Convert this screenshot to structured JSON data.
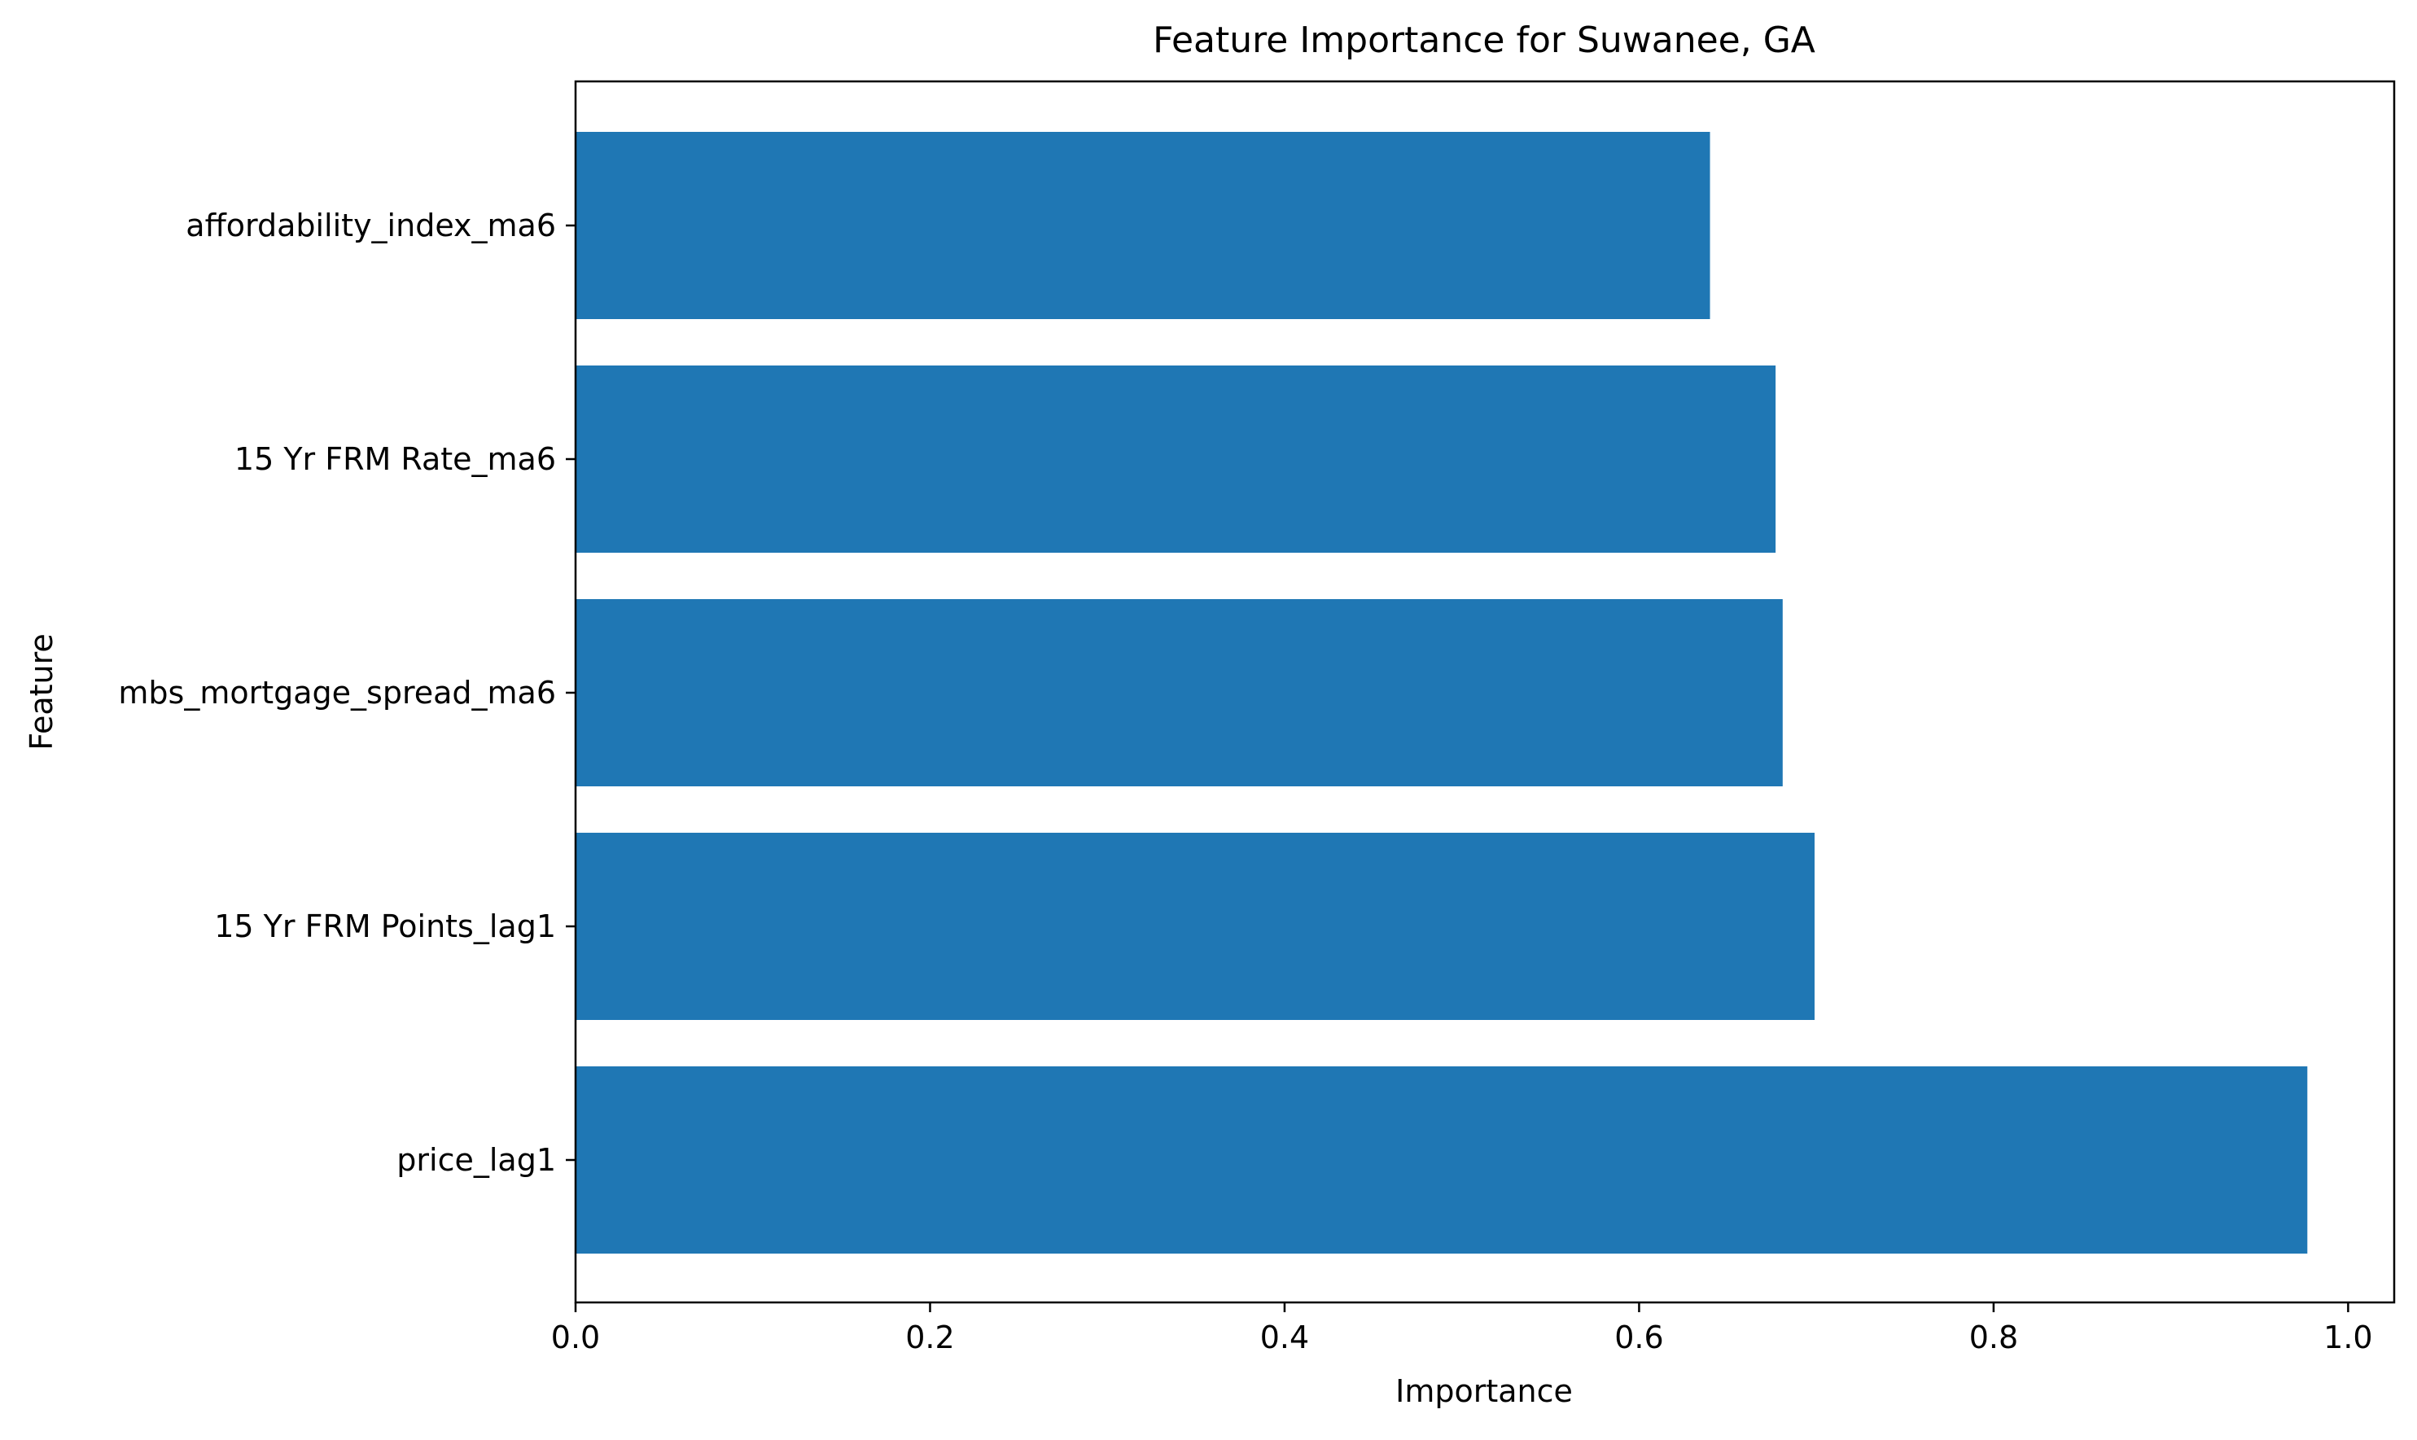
{
  "chart_data": {
    "type": "bar",
    "orientation": "horizontal",
    "title": "Feature Importance for Suwanee, GA",
    "xlabel": "Importance",
    "ylabel": "Feature",
    "categories": [
      "affordability_index_ma6",
      "15 Yr FRM Rate_ma6",
      "mbs_mortgage_spread_ma6",
      "15 Yr FRM Points_lag1",
      "price_lag1"
    ],
    "values": [
      0.64,
      0.677,
      0.681,
      0.699,
      0.977
    ],
    "xlim": [
      0.0,
      1.0
    ],
    "xticks": [
      0.0,
      0.2,
      0.4,
      0.6,
      0.8,
      1.0
    ],
    "xtick_labels": [
      "0.0",
      "0.2",
      "0.4",
      "0.6",
      "0.8",
      "1.0"
    ],
    "grid": false,
    "bar_color": "#1f77b4"
  }
}
